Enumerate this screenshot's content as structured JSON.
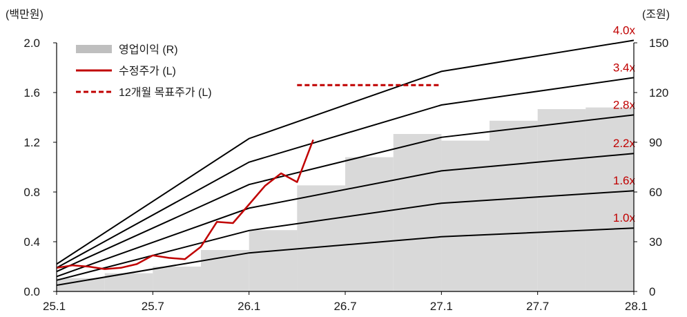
{
  "chart_data": {
    "type": "bar+line",
    "units": {
      "left": "(백만원)",
      "right": "(조원)"
    },
    "x_axis": {
      "ticks": [
        "25.1",
        "25.7",
        "26.1",
        "26.7",
        "27.1",
        "27.7",
        "28.1"
      ],
      "range": [
        "25.1",
        "28.1"
      ]
    },
    "y_left": {
      "range": [
        0,
        2.0
      ],
      "ticks": [
        "0.0",
        "0.4",
        "0.8",
        "1.2",
        "1.6",
        "2.0"
      ]
    },
    "y_right": {
      "range": [
        0,
        150
      ],
      "ticks": [
        "0",
        "30",
        "60",
        "90",
        "120",
        "150"
      ]
    },
    "legend": {
      "position": "top-left",
      "items": [
        {
          "label": "영업이익 (R)",
          "kind": "bar",
          "color": "#bfbfbf"
        },
        {
          "label": "수정주가 (L)",
          "kind": "line",
          "color": "#c00000"
        },
        {
          "label": "12개월 목표주가 (L)",
          "kind": "dashed",
          "color": "#c00000"
        }
      ]
    },
    "operating_profit": {
      "axis": "right",
      "color": "#d9d9d9",
      "steps": [
        {
          "from": "25.1",
          "to": "25.4",
          "value": 8
        },
        {
          "from": "25.4",
          "to": "25.7",
          "value": 11
        },
        {
          "from": "25.7",
          "to": "25.10",
          "value": 15
        },
        {
          "from": "25.10",
          "to": "26.1",
          "value": 25
        },
        {
          "from": "26.1",
          "to": "26.4",
          "value": 37
        },
        {
          "from": "26.4",
          "to": "26.7",
          "value": 64
        },
        {
          "from": "26.7",
          "to": "26.10",
          "value": 81
        },
        {
          "from": "26.10",
          "to": "27.1",
          "value": 95
        },
        {
          "from": "27.1",
          "to": "27.4",
          "value": 91
        },
        {
          "from": "27.4",
          "to": "27.7",
          "value": 103
        },
        {
          "from": "27.7",
          "to": "27.10",
          "value": 110
        },
        {
          "from": "27.10",
          "to": "28.1",
          "value": 111
        }
      ]
    },
    "pbr_bands": {
      "axis": "left",
      "color": "#000000",
      "label_color": "#c00000",
      "dates": [
        "25.1",
        "26.1",
        "27.1",
        "28.1"
      ],
      "series": [
        {
          "name": "1.0x",
          "values": [
            0.05,
            0.31,
            0.44,
            0.51
          ]
        },
        {
          "name": "1.6x",
          "values": [
            0.09,
            0.49,
            0.71,
            0.81
          ]
        },
        {
          "name": "2.2x",
          "values": [
            0.12,
            0.67,
            0.97,
            1.11
          ]
        },
        {
          "name": "2.8x",
          "values": [
            0.16,
            0.86,
            1.24,
            1.42
          ]
        },
        {
          "name": "3.4x",
          "values": [
            0.19,
            1.04,
            1.5,
            1.72
          ]
        },
        {
          "name": "4.0x",
          "values": [
            0.22,
            1.23,
            1.77,
            2.02
          ]
        }
      ]
    },
    "target_price": {
      "axis": "left",
      "color": "#c00000",
      "from": "26.4",
      "to": "27.1",
      "value": 1.66
    },
    "adjusted_price": {
      "axis": "left",
      "color": "#c00000",
      "points": [
        [
          "25.1",
          0.19
        ],
        [
          "25.2",
          0.21
        ],
        [
          "25.3",
          0.2
        ],
        [
          "25.4",
          0.18
        ],
        [
          "25.5",
          0.19
        ],
        [
          "25.6",
          0.22
        ],
        [
          "25.7",
          0.29
        ],
        [
          "25.8",
          0.27
        ],
        [
          "25.9",
          0.26
        ],
        [
          "25.10",
          0.36
        ],
        [
          "25.11",
          0.56
        ],
        [
          "25.12",
          0.55
        ],
        [
          "26.1",
          0.7
        ],
        [
          "26.2",
          0.85
        ],
        [
          "26.3",
          0.95
        ],
        [
          "26.4",
          0.88
        ],
        [
          "26.5",
          1.22
        ]
      ]
    }
  }
}
